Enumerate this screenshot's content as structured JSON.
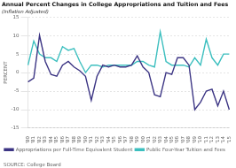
{
  "chart_data": {
    "type": "line",
    "title": "Annual Percent Changes in College Appropriations and Tuition and Fees",
    "subtitle": "(Inflation Adjusted)",
    "source": "SOURCE: College Board",
    "y_label": "PERCENT",
    "categories": [
      "'80",
      "'81",
      "'82",
      "'83",
      "'84",
      "'85",
      "'86",
      "'87",
      "'88",
      "'89",
      "'90",
      "'91",
      "'92",
      "'93",
      "'94",
      "'95",
      "'96",
      "'97",
      "'98",
      "'99",
      "'00",
      "'01",
      "'02",
      "'03",
      "'04",
      "'05",
      "'06",
      "'07",
      "'08",
      "'09",
      "'10",
      "'11",
      "'12",
      "'13",
      "'14",
      "'15"
    ],
    "series": [
      {
        "name": "Appropriations per Full-Time Equivalent Student",
        "color": "#3c3584",
        "values": [
          -2.5,
          -1.5,
          10,
          3,
          -0.5,
          -1,
          2,
          3,
          1.5,
          0.5,
          -1,
          -7.5,
          -1,
          2,
          1.5,
          2,
          1.5,
          1.5,
          2,
          4.5,
          1.5,
          0,
          -6,
          -6.5,
          0,
          -0.5,
          4,
          4,
          2,
          -10,
          -8,
          -5,
          -4.5,
          -9,
          -5,
          -10
        ]
      },
      {
        "name": "Public Four-Year Tuition and Fees",
        "color": "#3dbfbf",
        "values": [
          2,
          8.5,
          5,
          4,
          4,
          3,
          7,
          6,
          6.5,
          3,
          0,
          2,
          2,
          1.5,
          2,
          2,
          2,
          2,
          2,
          3,
          3,
          2,
          1.5,
          11,
          3,
          2,
          2,
          2,
          1.5,
          4,
          2,
          9,
          4,
          2,
          5,
          5
        ]
      }
    ],
    "ylim": [
      -15,
      15
    ],
    "yticks": [
      -15,
      -10,
      -5,
      0,
      5,
      10,
      15
    ],
    "grid": true,
    "legend": "bottom",
    "marker": "none"
  }
}
